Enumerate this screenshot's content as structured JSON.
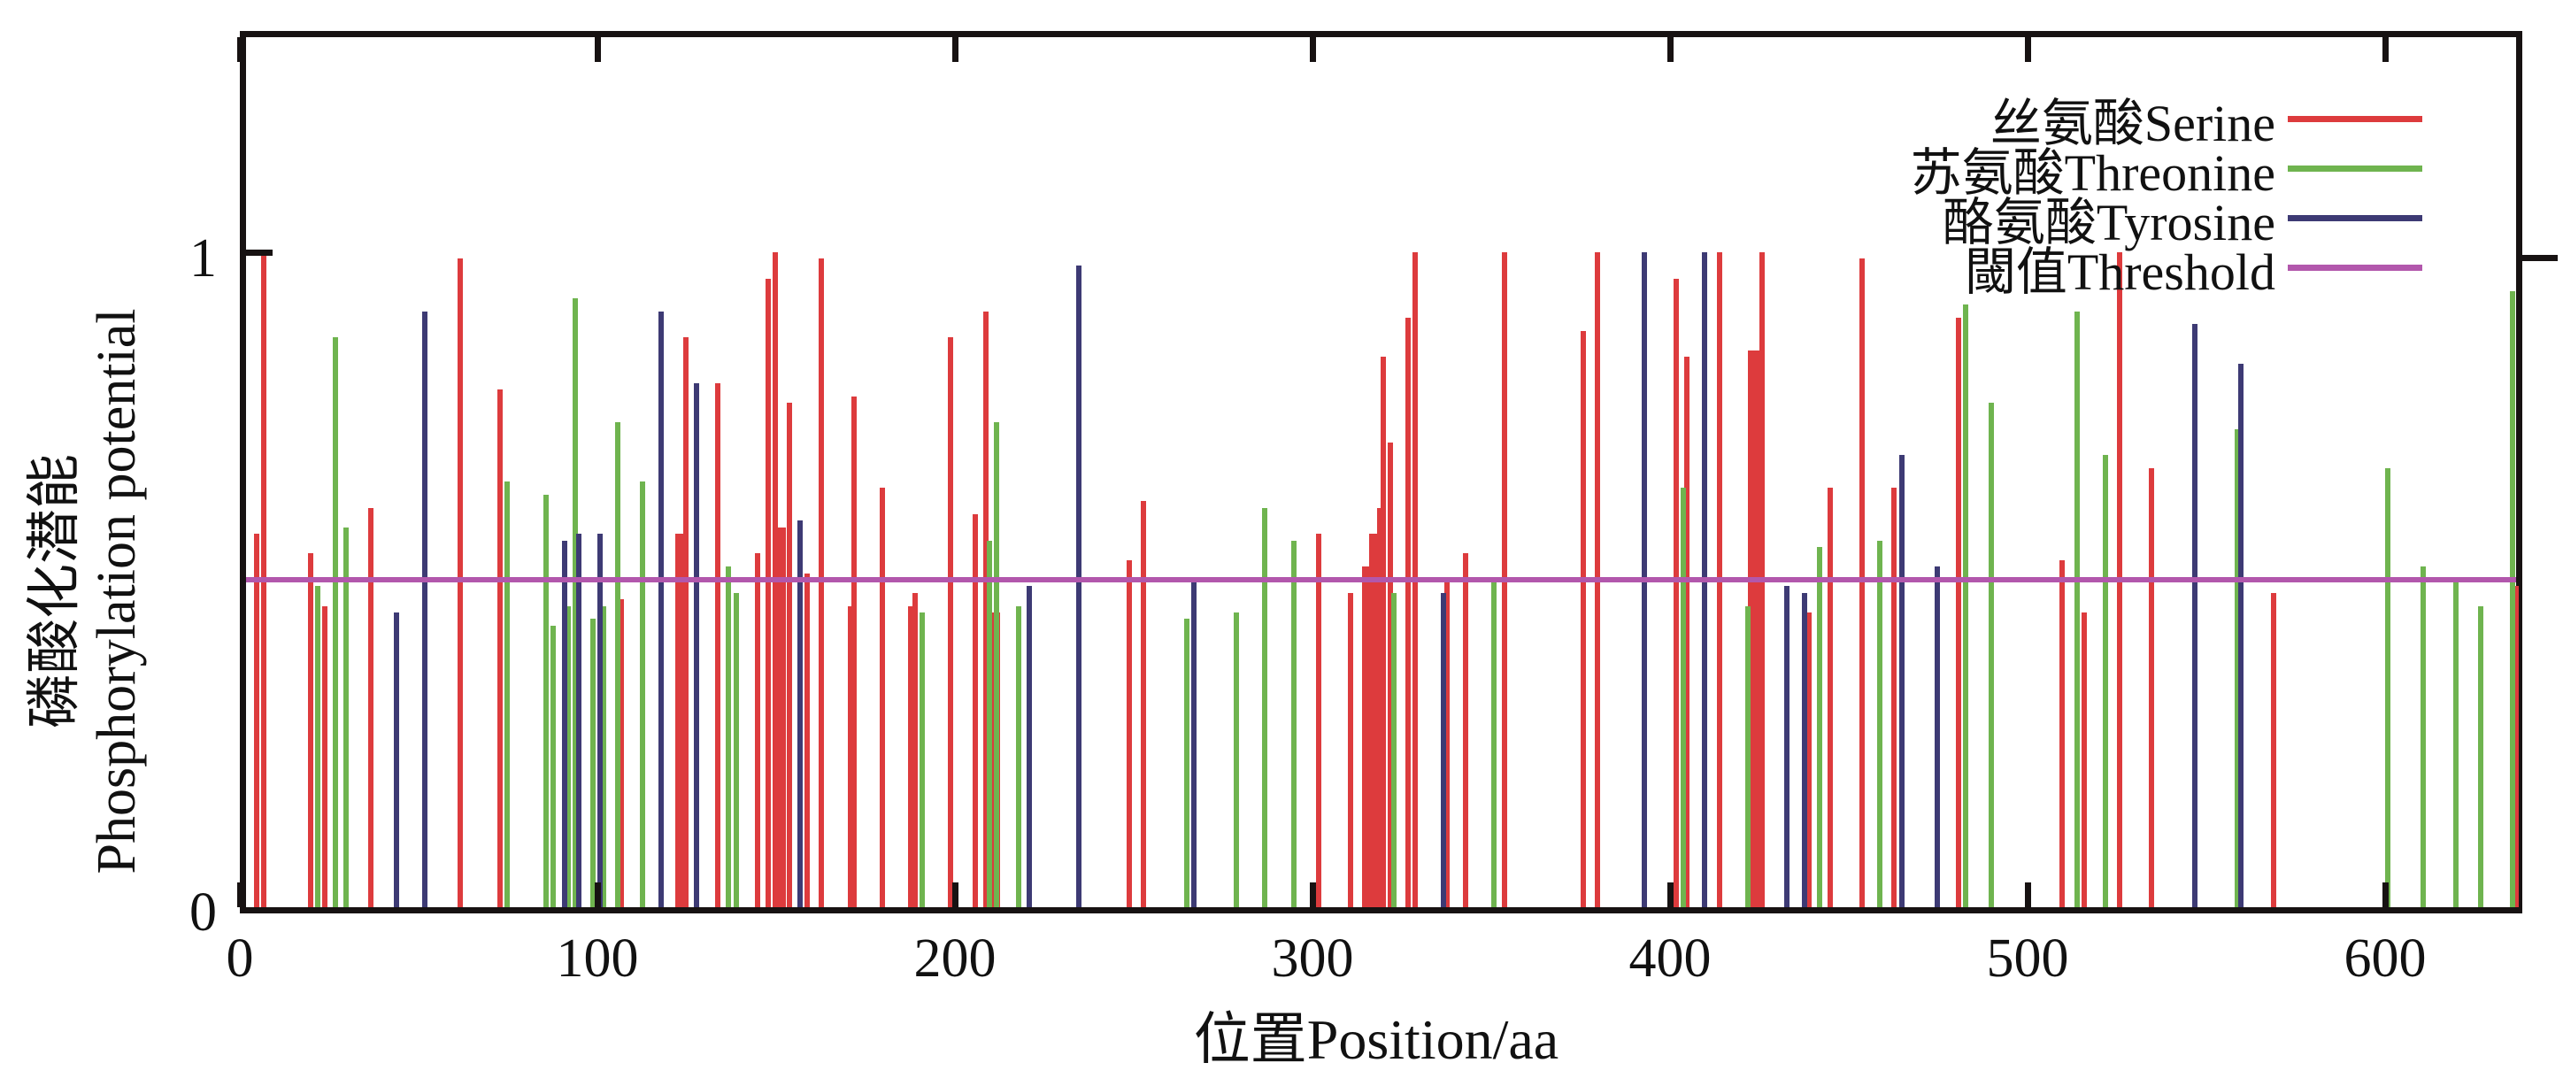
{
  "figure": {
    "background": "#ffffff",
    "frame_color": "#171212"
  },
  "legend": {
    "items": [
      {
        "label": "丝氨酸Serine",
        "color": "#dd3b3d"
      },
      {
        "label": "苏氨酸Threonine",
        "color": "#6fb44f"
      },
      {
        "label": "酪氨酸Tyrosine",
        "color": "#3d3a74"
      },
      {
        "label": "閾值Threshold",
        "color": "#b257ac"
      }
    ]
  },
  "chart_data": {
    "type": "bar",
    "subtype": "impulse-stem",
    "title": "",
    "xlabel": "位置Position/aa",
    "ylabel_zh": "磷酸化潜能",
    "ylabel_en": "Phosphorylation potential",
    "xlim": [
      0,
      639
    ],
    "ylim": [
      0,
      1.33
    ],
    "xticks": [
      0,
      100,
      200,
      300,
      400,
      500,
      600
    ],
    "ytick_values": [
      1,
      0
    ],
    "ytick_labels": [
      "1",
      "0"
    ],
    "grid": false,
    "legend_position": "top-right",
    "threshold": {
      "name": "閾值Threshold",
      "value": 0.5,
      "color": "#b257ac"
    },
    "series": [
      {
        "name": "丝氨酸Serine",
        "residue": "Serine",
        "color": "#dd3b3d",
        "points": [
          [
            4,
            0.57
          ],
          [
            6,
            1.0
          ],
          [
            19,
            0.54
          ],
          [
            23,
            0.46
          ],
          [
            36,
            0.61
          ],
          [
            61,
            0.99
          ],
          [
            72,
            0.79
          ],
          [
            106,
            0.47
          ],
          [
            123,
            0.57,
            1
          ],
          [
            124,
            0.87
          ],
          [
            133,
            0.8
          ],
          [
            144,
            0.54
          ],
          [
            147,
            0.96
          ],
          [
            149,
            1.0
          ],
          [
            150,
            0.58,
            1
          ],
          [
            153,
            0.77
          ],
          [
            158,
            0.51
          ],
          [
            162,
            0.99
          ],
          [
            170,
            0.46
          ],
          [
            171,
            0.78
          ],
          [
            179,
            0.64
          ],
          [
            187,
            0.46
          ],
          [
            188,
            0.48
          ],
          [
            198,
            0.87
          ],
          [
            205,
            0.6
          ],
          [
            208,
            0.91
          ],
          [
            210,
            0.45,
            1
          ],
          [
            248,
            0.53
          ],
          [
            252,
            0.62
          ],
          [
            301,
            0.57
          ],
          [
            310,
            0.48
          ],
          [
            315,
            0.52,
            1
          ],
          [
            317,
            0.57,
            1
          ],
          [
            318,
            0.61
          ],
          [
            319,
            0.84
          ],
          [
            321,
            0.71
          ],
          [
            326,
            0.9
          ],
          [
            328,
            1.0
          ],
          [
            337,
            0.5
          ],
          [
            342,
            0.54
          ],
          [
            353,
            1.0
          ],
          [
            375,
            0.88
          ],
          [
            379,
            1.0
          ],
          [
            401,
            0.96
          ],
          [
            404,
            0.84
          ],
          [
            413,
            1.0
          ],
          [
            422,
            0.48
          ],
          [
            423,
            0.85,
            1
          ],
          [
            425,
            1.0
          ],
          [
            438,
            0.45
          ],
          [
            444,
            0.64
          ],
          [
            453,
            0.99
          ],
          [
            462,
            0.64
          ],
          [
            480,
            0.9
          ],
          [
            509,
            0.53
          ],
          [
            515,
            0.45
          ],
          [
            525,
            1.0
          ],
          [
            534,
            0.67
          ],
          [
            568,
            0.48
          ],
          [
            636,
            0.49
          ]
        ]
      },
      {
        "name": "苏氨酸Threonine",
        "residue": "Threonine",
        "color": "#6fb44f",
        "points": [
          [
            21,
            0.49
          ],
          [
            26,
            0.87
          ],
          [
            29,
            0.58
          ],
          [
            74,
            0.65
          ],
          [
            85,
            0.63
          ],
          [
            87,
            0.43
          ],
          [
            91,
            0.46
          ],
          [
            93,
            0.93
          ],
          [
            98,
            0.44
          ],
          [
            101,
            0.46
          ],
          [
            105,
            0.74
          ],
          [
            112,
            0.65
          ],
          [
            136,
            0.52
          ],
          [
            138,
            0.48
          ],
          [
            190,
            0.45
          ],
          [
            209,
            0.56
          ],
          [
            211,
            0.74
          ],
          [
            217,
            0.46
          ],
          [
            264,
            0.44
          ],
          [
            278,
            0.45
          ],
          [
            286,
            0.61
          ],
          [
            294,
            0.56
          ],
          [
            322,
            0.48
          ],
          [
            350,
            0.5
          ],
          [
            403,
            0.64
          ],
          [
            421,
            0.46
          ],
          [
            441,
            0.55
          ],
          [
            458,
            0.56
          ],
          [
            482,
            0.92
          ],
          [
            489,
            0.77
          ],
          [
            513,
            0.91
          ],
          [
            521,
            0.69
          ],
          [
            558,
            0.73
          ],
          [
            600,
            0.67
          ],
          [
            610,
            0.52
          ],
          [
            619,
            0.5
          ],
          [
            626,
            0.46
          ],
          [
            635,
            0.94
          ]
        ]
      },
      {
        "name": "酪氨酸Tyrosine",
        "residue": "Tyrosine",
        "color": "#3d3a74",
        "points": [
          [
            43,
            0.45
          ],
          [
            51,
            0.91
          ],
          [
            90,
            0.56
          ],
          [
            94,
            0.57
          ],
          [
            100,
            0.57
          ],
          [
            117,
            0.91
          ],
          [
            127,
            0.8
          ],
          [
            156,
            0.59
          ],
          [
            220,
            0.49
          ],
          [
            234,
            0.98
          ],
          [
            266,
            0.5
          ],
          [
            336,
            0.48
          ],
          [
            392,
            1.0
          ],
          [
            409,
            1.0
          ],
          [
            432,
            0.49
          ],
          [
            437,
            0.48
          ],
          [
            464,
            0.69
          ],
          [
            474,
            0.52
          ],
          [
            546,
            0.89
          ],
          [
            559,
            0.83
          ]
        ]
      }
    ]
  }
}
